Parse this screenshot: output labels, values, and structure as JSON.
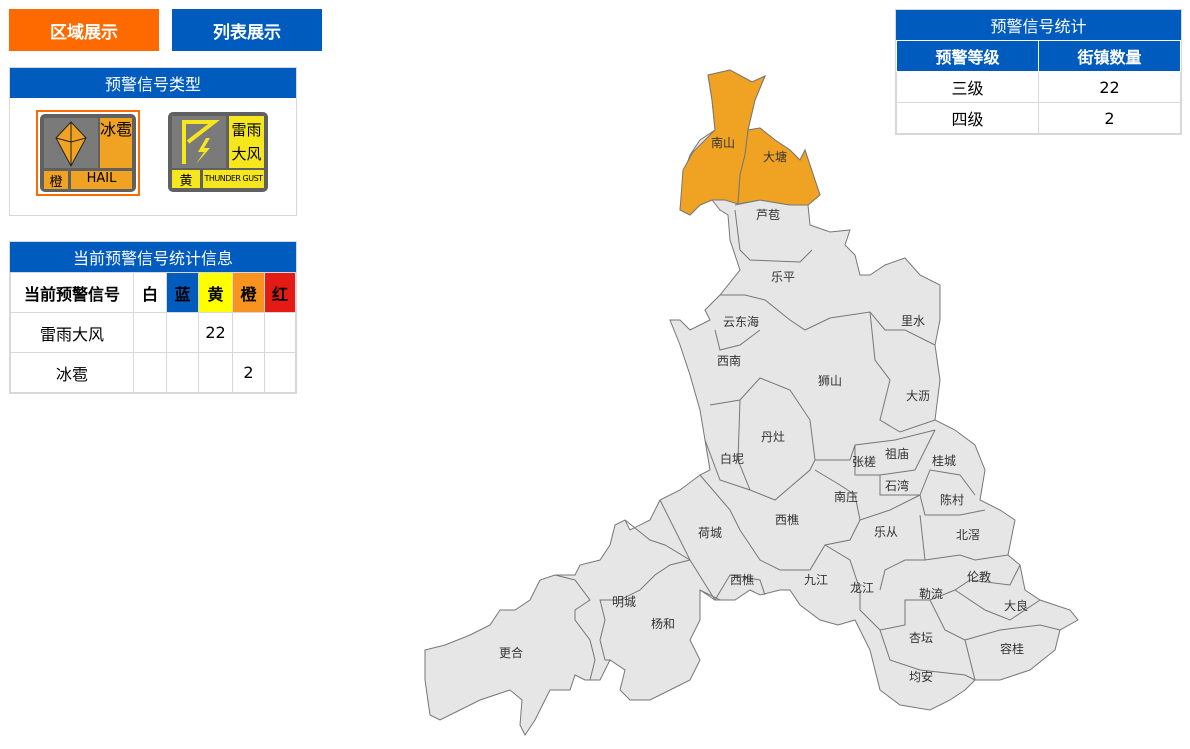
{
  "buttons": {
    "region": "区域展示",
    "list": "列表展示"
  },
  "types_panel": {
    "title": "预警信号类型",
    "signals": [
      {
        "name": "冰雹",
        "level": "橙",
        "en": "HAIL",
        "color": "#f0a223",
        "selected": true
      },
      {
        "name": "雷雨大风",
        "level": "黄",
        "en": "THUNDER GUST",
        "color": "#f5e61e",
        "selected": false
      }
    ]
  },
  "stats_panel": {
    "title": "当前预警信号统计信息",
    "headers": [
      "当前预警信号",
      "白",
      "蓝",
      "黄",
      "橙",
      "红"
    ],
    "header_colors": [
      "#ffffff",
      "#ffffff",
      "#005bbf",
      "#ffff00",
      "#f7931e",
      "#e31b14"
    ],
    "rows": [
      [
        "雷雨大风",
        "",
        "",
        "22",
        "",
        ""
      ],
      [
        "冰雹",
        "",
        "",
        "",
        "2",
        ""
      ]
    ]
  },
  "summary": {
    "title": "预警信号统计",
    "headers": [
      "预警等级",
      "街镇数量"
    ],
    "rows": [
      [
        "三级",
        "22"
      ],
      [
        "四级",
        "2"
      ]
    ]
  },
  "map": {
    "colors": {
      "warning_orange": "#f0a223",
      "default": "#e6e6e6"
    },
    "regions": [
      {
        "name": "南山",
        "level": "橙"
      },
      {
        "name": "大塘",
        "level": "橙"
      },
      {
        "name": "芦苞"
      },
      {
        "name": "乐平"
      },
      {
        "name": "云东海"
      },
      {
        "name": "里水"
      },
      {
        "name": "西南"
      },
      {
        "name": "狮山"
      },
      {
        "name": "大沥"
      },
      {
        "name": "丹灶"
      },
      {
        "name": "白坭"
      },
      {
        "name": "祖庙"
      },
      {
        "name": "张槎"
      },
      {
        "name": "桂城"
      },
      {
        "name": "石湾"
      },
      {
        "name": "南庄"
      },
      {
        "name": "陈村"
      },
      {
        "name": "西樵"
      },
      {
        "name": "荷城"
      },
      {
        "name": "乐从"
      },
      {
        "name": "北滘"
      },
      {
        "name": "西樵"
      },
      {
        "name": "九江"
      },
      {
        "name": "伦教"
      },
      {
        "name": "龙江"
      },
      {
        "name": "勒流"
      },
      {
        "name": "明城"
      },
      {
        "name": "大良"
      },
      {
        "name": "杨和"
      },
      {
        "name": "杏坛"
      },
      {
        "name": "容桂"
      },
      {
        "name": "更合"
      },
      {
        "name": "均安"
      }
    ]
  }
}
